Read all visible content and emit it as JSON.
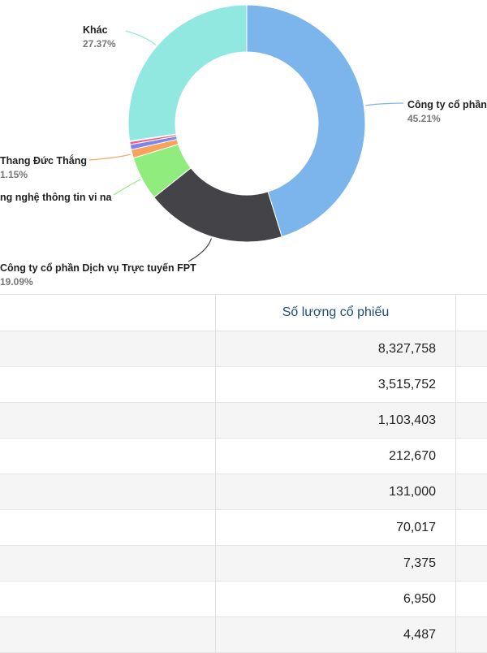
{
  "chart_data": {
    "type": "pie",
    "slices": [
      {
        "label": "Công ty cổ phần",
        "percent_text": "45.21%",
        "value": 45.21,
        "color": "#7cb5ec"
      },
      {
        "label": "Công ty cổ phần Dịch vụ Trực tuyến FPT",
        "percent_text": "19.09%",
        "value": 19.09,
        "color": "#434348"
      },
      {
        "label": "ng nghệ thông tin vi na",
        "percent_text": "",
        "value": 5.99,
        "color": "#90ed7d"
      },
      {
        "label": "Thang Đức Thắng",
        "percent_text": "1.15%",
        "value": 1.15,
        "color": "#f7a35c"
      },
      {
        "label": "",
        "percent_text": "",
        "value": 0.71,
        "color": "#8085e9"
      },
      {
        "label": "",
        "percent_text": "",
        "value": 0.38,
        "color": "#f15c80"
      },
      {
        "label": "",
        "percent_text": "",
        "value": 0.04,
        "color": "#e4d354"
      },
      {
        "label": "",
        "percent_text": "",
        "value": 0.04,
        "color": "#2b908f"
      },
      {
        "label": "",
        "percent_text": "",
        "value": 0.02,
        "color": "#f45b5b"
      },
      {
        "label": "Khác",
        "percent_text": "27.37%",
        "value": 27.37,
        "color": "#91e8e1"
      }
    ]
  },
  "table": {
    "column_header": "Số lượng cổ phiếu",
    "rows": [
      "8,327,758",
      "3,515,752",
      "1,103,403",
      "212,670",
      "131,000",
      "70,017",
      "7,375",
      "6,950",
      "4,487"
    ]
  }
}
